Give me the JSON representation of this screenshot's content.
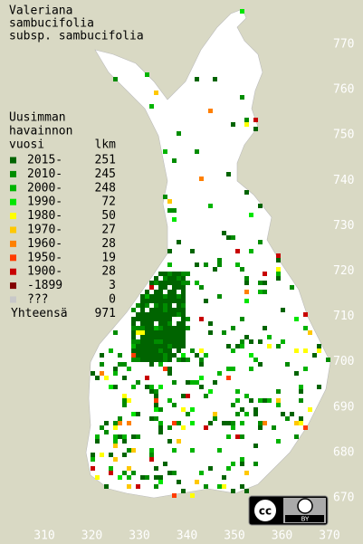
{
  "title": [
    "Valeriana",
    "sambucifolia",
    "subsp. sambucifolia"
  ],
  "legend": {
    "header": [
      "Uusimman",
      "havainnon"
    ],
    "col_year": "vuosi",
    "col_count": "lkm",
    "items": [
      {
        "label": "2015-",
        "count": 251,
        "color": "#006400"
      },
      {
        "label": "2010-",
        "count": 245,
        "color": "#008c00"
      },
      {
        "label": "2000-",
        "count": 248,
        "color": "#00b400"
      },
      {
        "label": "1990-",
        "count": 72,
        "color": "#00e600"
      },
      {
        "label": "1980-",
        "count": 50,
        "color": "#ffff00"
      },
      {
        "label": "1970-",
        "count": 27,
        "color": "#ffc800"
      },
      {
        "label": "1960-",
        "count": 28,
        "color": "#ff8000"
      },
      {
        "label": "1950-",
        "count": 19,
        "color": "#ff3c00"
      },
      {
        "label": "1900-",
        "count": 28,
        "color": "#c80000"
      },
      {
        "label": "-1899",
        "count": 3,
        "color": "#820000"
      },
      {
        "label": "???",
        "count": 0,
        "color": "#c8c8c8"
      }
    ],
    "total_label": "Yhteensä",
    "total": 971
  },
  "x_axis": {
    "ticks": [
      310,
      320,
      330,
      340,
      350,
      360,
      370
    ]
  },
  "y_axis": {
    "ticks": [
      670,
      680,
      690,
      700,
      710,
      720,
      730,
      740,
      750,
      760,
      770
    ]
  },
  "license": {
    "cc": "cc",
    "by": "BY"
  }
}
